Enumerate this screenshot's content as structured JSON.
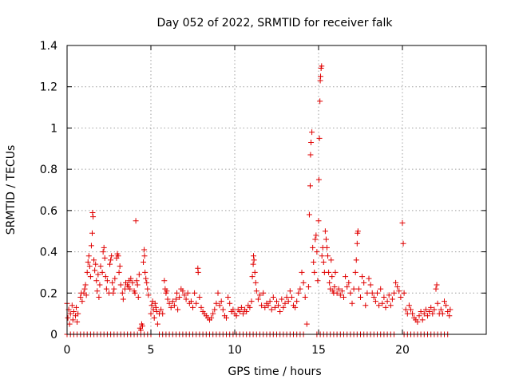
{
  "colors": {
    "series": "#e00000",
    "axis": "#000000",
    "grid": "#a0a0a0"
  },
  "chart_data": {
    "type": "scatter",
    "title": "Day 052 of 2022, SRMTID for receiver falk",
    "xlabel": "GPS time / hours",
    "ylabel": "SRMTID / TECUs",
    "xlim": [
      0,
      25
    ],
    "ylim": [
      0,
      1.4
    ],
    "xticks": [
      0,
      5,
      10,
      15,
      20
    ],
    "xtick_labels": [
      "0",
      "5",
      "10",
      "15",
      "20"
    ],
    "yticks": [
      0,
      0.2,
      0.4,
      0.6,
      0.8,
      1.0,
      1.2,
      1.4
    ],
    "ytick_labels": [
      "0",
      "0.2",
      "0.4",
      "0.6",
      "0.8",
      "1",
      "1.2",
      "1.4"
    ],
    "grid": true,
    "marker": "+",
    "series": [
      {
        "name": "SRMTID",
        "points": [
          [
            0.0,
            0.15
          ],
          [
            0.05,
            0.08
          ],
          [
            0.1,
            0.12
          ],
          [
            0.15,
            0.05
          ],
          [
            0.2,
            0.1
          ],
          [
            0.3,
            0.14
          ],
          [
            0.35,
            0.07
          ],
          [
            0.4,
            0.11
          ],
          [
            0.5,
            0.09
          ],
          [
            0.55,
            0.13
          ],
          [
            0.6,
            0.06
          ],
          [
            0.65,
            0.1
          ],
          [
            0.8,
            0.18
          ],
          [
            0.85,
            0.2
          ],
          [
            0.9,
            0.16
          ],
          [
            1.0,
            0.2
          ],
          [
            1.05,
            0.22
          ],
          [
            1.1,
            0.24
          ],
          [
            1.15,
            0.19
          ],
          [
            1.2,
            0.3
          ],
          [
            1.25,
            0.35
          ],
          [
            1.3,
            0.38
          ],
          [
            1.35,
            0.33
          ],
          [
            1.4,
            0.28
          ],
          [
            1.45,
            0.43
          ],
          [
            1.5,
            0.49
          ],
          [
            1.52,
            0.59
          ],
          [
            1.55,
            0.57
          ],
          [
            1.6,
            0.36
          ],
          [
            1.65,
            0.31
          ],
          [
            1.7,
            0.34
          ],
          [
            1.75,
            0.26
          ],
          [
            1.8,
            0.21
          ],
          [
            1.85,
            0.29
          ],
          [
            1.9,
            0.18
          ],
          [
            1.95,
            0.24
          ],
          [
            2.0,
            0.33
          ],
          [
            2.1,
            0.3
          ],
          [
            2.15,
            0.4
          ],
          [
            2.2,
            0.42
          ],
          [
            2.25,
            0.37
          ],
          [
            2.3,
            0.28
          ],
          [
            2.35,
            0.22
          ],
          [
            2.4,
            0.26
          ],
          [
            2.5,
            0.2
          ],
          [
            2.55,
            0.34
          ],
          [
            2.6,
            0.36
          ],
          [
            2.65,
            0.38
          ],
          [
            2.7,
            0.25
          ],
          [
            2.75,
            0.2
          ],
          [
            2.8,
            0.22
          ],
          [
            2.85,
            0.27
          ],
          [
            2.95,
            0.37
          ],
          [
            3.0,
            0.39
          ],
          [
            3.05,
            0.38
          ],
          [
            3.1,
            0.3
          ],
          [
            3.15,
            0.33
          ],
          [
            3.2,
            0.24
          ],
          [
            3.3,
            0.2
          ],
          [
            3.35,
            0.17
          ],
          [
            3.45,
            0.22
          ],
          [
            3.5,
            0.25
          ],
          [
            3.6,
            0.24
          ],
          [
            3.65,
            0.23
          ],
          [
            3.7,
            0.26
          ],
          [
            3.75,
            0.22
          ],
          [
            3.8,
            0.27
          ],
          [
            3.9,
            0.25
          ],
          [
            4.0,
            0.21
          ],
          [
            4.05,
            0.2
          ],
          [
            4.1,
            0.55
          ],
          [
            4.15,
            0.26
          ],
          [
            4.2,
            0.24
          ],
          [
            4.25,
            0.18
          ],
          [
            4.3,
            0.29
          ],
          [
            4.35,
            0.03
          ],
          [
            4.4,
            0.02
          ],
          [
            4.45,
            0.05
          ],
          [
            4.5,
            0.04
          ],
          [
            4.55,
            0.35
          ],
          [
            4.6,
            0.41
          ],
          [
            4.62,
            0.38
          ],
          [
            4.65,
            0.3
          ],
          [
            4.7,
            0.27
          ],
          [
            4.75,
            0.25
          ],
          [
            4.8,
            0.22
          ],
          [
            4.85,
            0.19
          ],
          [
            5.0,
            0.1
          ],
          [
            5.05,
            0.14
          ],
          [
            5.1,
            0.16
          ],
          [
            5.15,
            0.12
          ],
          [
            5.2,
            0.08
          ],
          [
            5.25,
            0.15
          ],
          [
            5.3,
            0.13
          ],
          [
            5.35,
            0.11
          ],
          [
            5.4,
            0.05
          ],
          [
            5.5,
            0.1
          ],
          [
            5.6,
            0.12
          ],
          [
            5.7,
            0.1
          ],
          [
            5.8,
            0.26
          ],
          [
            5.85,
            0.22
          ],
          [
            5.9,
            0.2
          ],
          [
            5.95,
            0.21
          ],
          [
            6.0,
            0.17
          ],
          [
            6.1,
            0.15
          ],
          [
            6.2,
            0.13
          ],
          [
            6.3,
            0.16
          ],
          [
            6.4,
            0.14
          ],
          [
            6.5,
            0.17
          ],
          [
            6.55,
            0.2
          ],
          [
            6.6,
            0.12
          ],
          [
            6.7,
            0.18
          ],
          [
            6.8,
            0.22
          ],
          [
            6.9,
            0.21
          ],
          [
            7.0,
            0.19
          ],
          [
            7.1,
            0.17
          ],
          [
            7.2,
            0.2
          ],
          [
            7.3,
            0.15
          ],
          [
            7.4,
            0.16
          ],
          [
            7.5,
            0.13
          ],
          [
            7.6,
            0.2
          ],
          [
            7.7,
            0.15
          ],
          [
            7.8,
            0.32
          ],
          [
            7.82,
            0.3
          ],
          [
            7.9,
            0.18
          ],
          [
            8.0,
            0.13
          ],
          [
            8.1,
            0.11
          ],
          [
            8.2,
            0.1
          ],
          [
            8.3,
            0.09
          ],
          [
            8.4,
            0.08
          ],
          [
            8.5,
            0.07
          ],
          [
            8.6,
            0.08
          ],
          [
            8.7,
            0.1
          ],
          [
            8.8,
            0.12
          ],
          [
            8.9,
            0.15
          ],
          [
            9.0,
            0.2
          ],
          [
            9.1,
            0.14
          ],
          [
            9.2,
            0.16
          ],
          [
            9.3,
            0.12
          ],
          [
            9.4,
            0.09
          ],
          [
            9.5,
            0.08
          ],
          [
            9.6,
            0.18
          ],
          [
            9.7,
            0.15
          ],
          [
            9.8,
            0.11
          ],
          [
            9.9,
            0.12
          ],
          [
            10.0,
            0.1
          ],
          [
            10.1,
            0.09
          ],
          [
            10.2,
            0.12
          ],
          [
            10.3,
            0.11
          ],
          [
            10.4,
            0.13
          ],
          [
            10.5,
            0.1
          ],
          [
            10.6,
            0.12
          ],
          [
            10.7,
            0.11
          ],
          [
            10.8,
            0.14
          ],
          [
            10.9,
            0.13
          ],
          [
            11.0,
            0.16
          ],
          [
            11.05,
            0.28
          ],
          [
            11.1,
            0.34
          ],
          [
            11.12,
            0.38
          ],
          [
            11.15,
            0.36
          ],
          [
            11.2,
            0.3
          ],
          [
            11.25,
            0.25
          ],
          [
            11.3,
            0.21
          ],
          [
            11.4,
            0.17
          ],
          [
            11.5,
            0.19
          ],
          [
            11.6,
            0.14
          ],
          [
            11.7,
            0.2
          ],
          [
            11.8,
            0.13
          ],
          [
            11.9,
            0.15
          ],
          [
            12.0,
            0.14
          ],
          [
            12.1,
            0.16
          ],
          [
            12.2,
            0.12
          ],
          [
            12.3,
            0.18
          ],
          [
            12.4,
            0.13
          ],
          [
            12.5,
            0.16
          ],
          [
            12.6,
            0.14
          ],
          [
            12.7,
            0.11
          ],
          [
            12.8,
            0.17
          ],
          [
            12.9,
            0.13
          ],
          [
            13.0,
            0.15
          ],
          [
            13.1,
            0.18
          ],
          [
            13.2,
            0.16
          ],
          [
            13.3,
            0.21
          ],
          [
            13.4,
            0.18
          ],
          [
            13.5,
            0.14
          ],
          [
            13.6,
            0.13
          ],
          [
            13.7,
            0.16
          ],
          [
            13.8,
            0.2
          ],
          [
            13.9,
            0.22
          ],
          [
            14.0,
            0.3
          ],
          [
            14.1,
            0.25
          ],
          [
            14.2,
            0.18
          ],
          [
            14.3,
            0.05
          ],
          [
            14.4,
            0.23
          ],
          [
            14.45,
            0.58
          ],
          [
            14.5,
            0.72
          ],
          [
            14.52,
            0.87
          ],
          [
            14.55,
            0.93
          ],
          [
            14.6,
            0.98
          ],
          [
            14.65,
            0.42
          ],
          [
            14.7,
            0.35
          ],
          [
            14.75,
            0.3
          ],
          [
            14.8,
            0.46
          ],
          [
            14.85,
            0.48
          ],
          [
            14.9,
            0.4
          ],
          [
            14.95,
            0.26
          ],
          [
            15.0,
            0.55
          ],
          [
            15.02,
            0.75
          ],
          [
            15.05,
            0.95
          ],
          [
            15.08,
            1.13
          ],
          [
            15.1,
            1.23
          ],
          [
            15.12,
            1.25
          ],
          [
            15.15,
            1.29
          ],
          [
            15.18,
            1.3
          ],
          [
            15.2,
            0.38
          ],
          [
            15.25,
            0.42
          ],
          [
            15.3,
            0.35
          ],
          [
            15.35,
            0.3
          ],
          [
            15.4,
            0.5
          ],
          [
            15.45,
            0.46
          ],
          [
            15.5,
            0.42
          ],
          [
            15.55,
            0.38
          ],
          [
            15.6,
            0.3
          ],
          [
            15.65,
            0.25
          ],
          [
            15.7,
            0.22
          ],
          [
            15.75,
            0.36
          ],
          [
            15.8,
            0.28
          ],
          [
            15.85,
            0.21
          ],
          [
            15.9,
            0.2
          ],
          [
            15.95,
            0.23
          ],
          [
            16.0,
            0.3
          ],
          [
            16.1,
            0.2
          ],
          [
            16.2,
            0.22
          ],
          [
            16.3,
            0.19
          ],
          [
            16.4,
            0.21
          ],
          [
            16.5,
            0.18
          ],
          [
            16.6,
            0.28
          ],
          [
            16.7,
            0.23
          ],
          [
            16.8,
            0.25
          ],
          [
            16.9,
            0.2
          ],
          [
            17.0,
            0.15
          ],
          [
            17.1,
            0.22
          ],
          [
            17.2,
            0.3
          ],
          [
            17.25,
            0.36
          ],
          [
            17.3,
            0.44
          ],
          [
            17.32,
            0.49
          ],
          [
            17.35,
            0.5
          ],
          [
            17.4,
            0.22
          ],
          [
            17.5,
            0.18
          ],
          [
            17.6,
            0.28
          ],
          [
            17.7,
            0.25
          ],
          [
            17.8,
            0.14
          ],
          [
            17.9,
            0.2
          ],
          [
            18.0,
            0.27
          ],
          [
            18.1,
            0.24
          ],
          [
            18.2,
            0.2
          ],
          [
            18.3,
            0.18
          ],
          [
            18.4,
            0.16
          ],
          [
            18.5,
            0.2
          ],
          [
            18.6,
            0.14
          ],
          [
            18.7,
            0.22
          ],
          [
            18.8,
            0.15
          ],
          [
            18.9,
            0.18
          ],
          [
            19.0,
            0.13
          ],
          [
            19.1,
            0.16
          ],
          [
            19.2,
            0.19
          ],
          [
            19.3,
            0.14
          ],
          [
            19.4,
            0.17
          ],
          [
            19.5,
            0.2
          ],
          [
            19.6,
            0.25
          ],
          [
            19.7,
            0.23
          ],
          [
            19.8,
            0.21
          ],
          [
            19.9,
            0.18
          ],
          [
            20.0,
            0.54
          ],
          [
            20.05,
            0.44
          ],
          [
            20.1,
            0.2
          ],
          [
            20.2,
            0.12
          ],
          [
            20.3,
            0.1
          ],
          [
            20.4,
            0.14
          ],
          [
            20.5,
            0.12
          ],
          [
            20.6,
            0.1
          ],
          [
            20.7,
            0.08
          ],
          [
            20.8,
            0.07
          ],
          [
            20.9,
            0.06
          ],
          [
            21.0,
            0.09
          ],
          [
            21.1,
            0.11
          ],
          [
            21.2,
            0.07
          ],
          [
            21.3,
            0.1
          ],
          [
            21.4,
            0.12
          ],
          [
            21.5,
            0.09
          ],
          [
            21.6,
            0.11
          ],
          [
            21.7,
            0.13
          ],
          [
            21.8,
            0.1
          ],
          [
            21.9,
            0.12
          ],
          [
            22.0,
            0.22
          ],
          [
            22.05,
            0.24
          ],
          [
            22.1,
            0.15
          ],
          [
            22.2,
            0.1
          ],
          [
            22.3,
            0.12
          ],
          [
            22.4,
            0.1
          ],
          [
            22.5,
            0.16
          ],
          [
            22.6,
            0.14
          ],
          [
            22.7,
            0.11
          ],
          [
            22.8,
            0.09
          ],
          [
            22.85,
            0.12
          ]
        ],
        "zero_ranges": [
          [
            0.0,
            5.0
          ],
          [
            5.5,
            14.2
          ],
          [
            14.9,
            19.6
          ],
          [
            20.1,
            22.8
          ]
        ],
        "zero_step": 0.2
      }
    ]
  }
}
